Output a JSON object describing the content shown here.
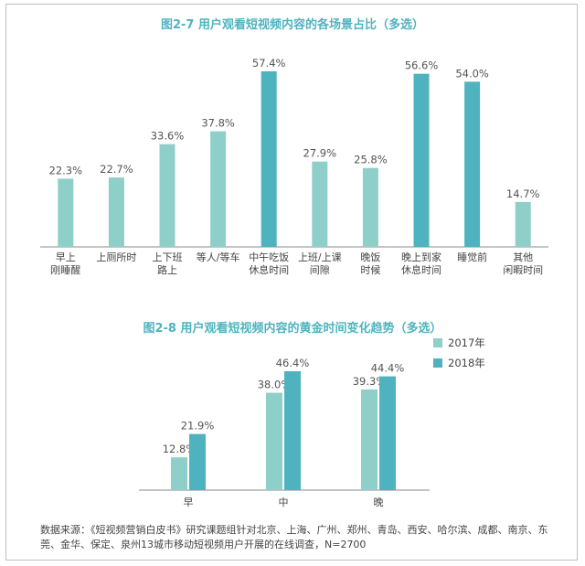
{
  "chart_data": [
    {
      "type": "bar",
      "title": "图2-7   用户观看短视频内容的各场景占比（多选）",
      "categories": [
        [
          "早上",
          "刚睡醒"
        ],
        [
          "上厕所时"
        ],
        [
          "上下班",
          "路上"
        ],
        [
          "等人/等车"
        ],
        [
          "中午吃饭",
          "休息时间"
        ],
        [
          "上班/上课",
          "间隙"
        ],
        [
          "晚饭",
          "时候"
        ],
        [
          "晚上到家",
          "休息时间"
        ],
        [
          "睡觉前"
        ],
        [
          "其他",
          "闲暇时间"
        ]
      ],
      "values": [
        22.3,
        22.7,
        33.6,
        37.8,
        57.4,
        27.9,
        25.8,
        56.6,
        54.0,
        14.7
      ],
      "value_labels": [
        "22.3%",
        "22.7%",
        "33.6%",
        "37.8%",
        "57.4%",
        "27.9%",
        "25.8%",
        "56.6%",
        "54.0%",
        "14.7%"
      ],
      "highlight": [
        false,
        false,
        false,
        false,
        true,
        false,
        false,
        true,
        true,
        false
      ],
      "colors": {
        "normal": "#8fcfca",
        "highlight": "#4fb3bf"
      },
      "ylim": [
        0,
        60
      ]
    },
    {
      "type": "bar",
      "title": "图2-8   用户观看短视频内容的黄金时间变化趋势（多选）",
      "categories": [
        "早",
        "中",
        "晚"
      ],
      "series": [
        {
          "name": "2017年",
          "values": [
            12.8,
            38.0,
            39.3
          ],
          "labels": [
            "12.8%",
            "38.0%",
            "39.3%"
          ],
          "color": "#8fcfca"
        },
        {
          "name": "2018年",
          "values": [
            21.9,
            46.4,
            44.4
          ],
          "labels": [
            "21.9%",
            "46.4%",
            "44.4%"
          ],
          "color": "#4fb3bf"
        }
      ],
      "ylim": [
        0,
        50
      ],
      "legend": "top-right"
    }
  ],
  "source": "数据来源：《短视频营销白皮书》研究课题组针对北京、上海、广州、郑州、青岛、西安、哈尔滨、成都、南京、东莞、金华、保定、泉州13城市移动短视频用户开展的在线调查，N=2700"
}
